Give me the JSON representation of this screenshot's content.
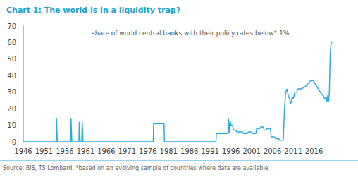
{
  "chart_data": {
    "type": "line",
    "title": "Chart 1: The world is in a liquidity trap?",
    "annotation": "share of world central banks with their policy rates below* 1%",
    "source": "Source: BIS, TS Lombard, *based on an evolving sample of countries where data are available",
    "color": "#29abe2",
    "grid": false,
    "xlim": [
      1946,
      2021
    ],
    "xticks": [
      1946,
      1951,
      1956,
      1961,
      1966,
      1971,
      1976,
      1981,
      1986,
      1991,
      1996,
      2001,
      2006,
      2011,
      2016
    ],
    "ylim": [
      0,
      70
    ],
    "yticks": [
      0,
      10,
      20,
      30,
      40,
      50,
      60,
      70
    ],
    "x": [
      1946,
      1953.9,
      1954.0,
      1954.1,
      1954.2,
      1957.4,
      1957.5,
      1957.6,
      1957.7,
      1959.4,
      1959.5,
      1959.6,
      1959.7,
      1960.1,
      1960.2,
      1960.3,
      1960.4,
      1977.3,
      1977.4,
      1979.9,
      1980.0,
      1992.4,
      1992.5,
      1995.0,
      1995.3,
      1995.4,
      1995.6,
      1995.8,
      1996.0,
      1996.4,
      1996.6,
      1997.2,
      1997.4,
      1998.8,
      1999.0,
      2000.0,
      2000.2,
      2001.0,
      2001.2,
      2002.0,
      2002.2,
      2003.0,
      2003.2,
      2003.8,
      2004.0,
      2004.5,
      2004.7,
      2005.5,
      2005.7,
      2006.5,
      2006.7,
      2007.5,
      2007.7,
      2008.6,
      2008.9,
      2009.2,
      2009.5,
      2009.8,
      2010.1,
      2010.4,
      2010.8,
      2011.0,
      2011.4,
      2011.8,
      2012.2,
      2013.0,
      2013.6,
      2014.2,
      2014.8,
      2015.2,
      2015.8,
      2016.3,
      2016.8,
      2017.5,
      2018.2,
      2018.6,
      2018.9,
      2019.1,
      2019.3,
      2019.5,
      2019.7,
      2019.9,
      2020.1,
      2020.4
    ],
    "values": [
      0,
      0,
      14,
      14,
      0,
      0,
      14,
      14,
      0,
      0,
      12,
      12,
      0,
      0,
      12,
      12,
      0,
      0,
      11,
      11,
      0,
      0,
      5,
      5,
      5,
      14,
      5,
      13,
      10,
      10,
      7,
      7,
      6,
      6,
      5,
      5,
      6,
      6,
      5,
      5,
      8,
      8,
      9,
      9,
      7,
      7,
      8,
      8,
      3,
      3,
      2,
      2,
      1,
      1,
      20,
      30,
      32,
      28,
      26,
      23,
      27,
      26,
      30,
      30,
      32,
      32,
      33,
      34,
      36,
      37,
      37,
      35,
      33,
      30,
      28,
      26,
      27,
      24,
      28,
      24,
      30,
      52,
      60,
      60
    ]
  }
}
